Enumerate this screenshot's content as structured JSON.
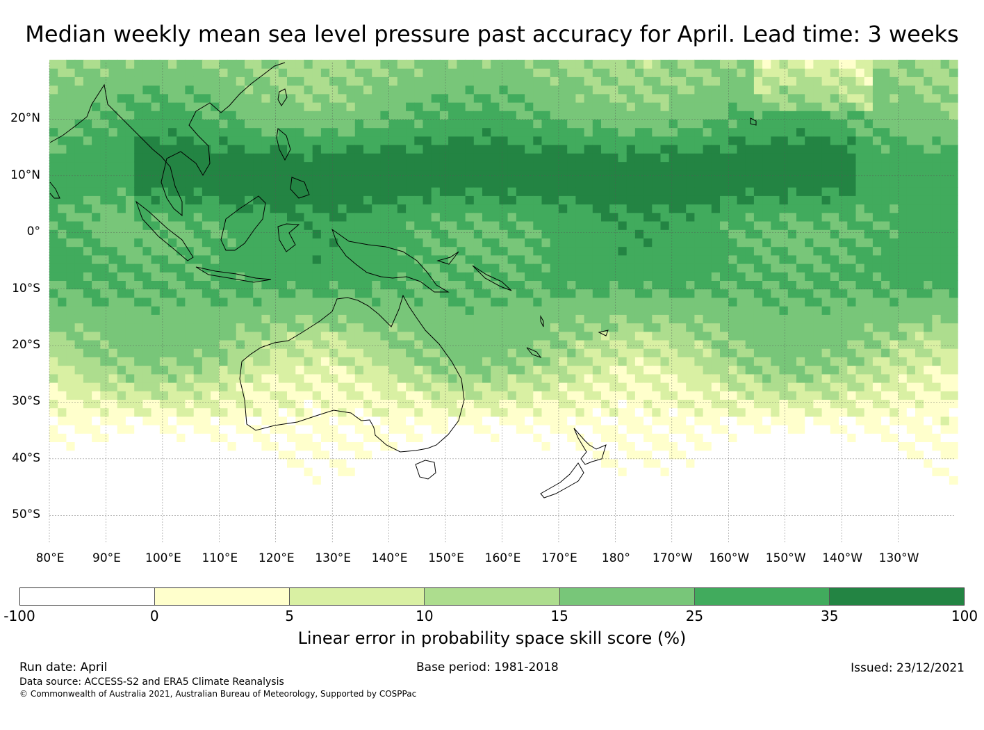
{
  "title": "Median weekly mean sea level pressure past accuracy for April. Lead time: 3 weeks",
  "map": {
    "lon_range": [
      80,
      240
    ],
    "lat_range": [
      -55,
      30
    ],
    "lat_ticks": [
      {
        "lat": 20,
        "label": "20°N"
      },
      {
        "lat": 10,
        "label": "10°N"
      },
      {
        "lat": 0,
        "label": "0°"
      },
      {
        "lat": -10,
        "label": "10°S"
      },
      {
        "lat": -20,
        "label": "20°S"
      },
      {
        "lat": -30,
        "label": "30°S"
      },
      {
        "lat": -40,
        "label": "40°S"
      },
      {
        "lat": -50,
        "label": "50°S"
      }
    ],
    "lon_ticks": [
      {
        "lon": 80,
        "label": "80°E"
      },
      {
        "lon": 90,
        "label": "90°E"
      },
      {
        "lon": 100,
        "label": "100°E"
      },
      {
        "lon": 110,
        "label": "110°E"
      },
      {
        "lon": 120,
        "label": "120°E"
      },
      {
        "lon": 130,
        "label": "130°E"
      },
      {
        "lon": 140,
        "label": "140°E"
      },
      {
        "lon": 150,
        "label": "150°E"
      },
      {
        "lon": 160,
        "label": "160°E"
      },
      {
        "lon": 170,
        "label": "170°E"
      },
      {
        "lon": 180,
        "label": "180°"
      },
      {
        "lon": 190,
        "label": "170°W"
      },
      {
        "lon": 200,
        "label": "160°W"
      },
      {
        "lon": 210,
        "label": "150°W"
      },
      {
        "lon": 220,
        "label": "140°W"
      },
      {
        "lon": 230,
        "label": "130°W"
      }
    ]
  },
  "colorbar": {
    "title": "Linear error in probability space skill score (%)",
    "boundaries": [
      "-100",
      "0",
      "5",
      "10",
      "15",
      "25",
      "35",
      "100"
    ],
    "colors": [
      "#ffffff",
      "#ffffcc",
      "#d9f0a3",
      "#addd8e",
      "#78c679",
      "#41ab5d",
      "#238443"
    ]
  },
  "footer": {
    "run_date": "Run date: April",
    "base_period": "Base period: 1981-2018",
    "issued": "Issued: 23/12/2021",
    "data_source": "Data source: ACCESS-S2 and ERA5 Climate Reanalysis",
    "copyright": "© Commonwealth of Australia 2021, Australian Bureau of Meteorology, Supported by COSPPac"
  }
}
